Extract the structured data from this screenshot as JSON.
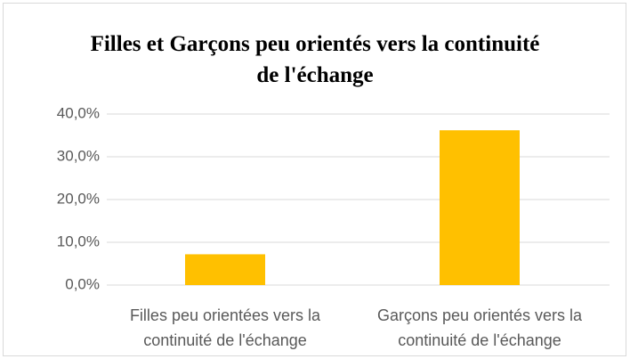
{
  "chart_data": {
    "type": "bar",
    "title": "Filles et Garçons peu orientés vers la continuité de l'échange",
    "categories": [
      "Filles peu orientées vers la continuité de l'échange",
      "Garçons peu orientés vers la continuité de l'échange"
    ],
    "values": [
      7.2,
      36.2
    ],
    "color": "#ffc000",
    "ylim": [
      0,
      40
    ],
    "yticks": [
      {
        "value": 0,
        "label": "0,0%"
      },
      {
        "value": 10,
        "label": "10,0%"
      },
      {
        "value": 20,
        "label": "20,0%"
      },
      {
        "value": 30,
        "label": "30,0%"
      },
      {
        "value": 40,
        "label": "40,0%"
      }
    ],
    "grid": true
  }
}
